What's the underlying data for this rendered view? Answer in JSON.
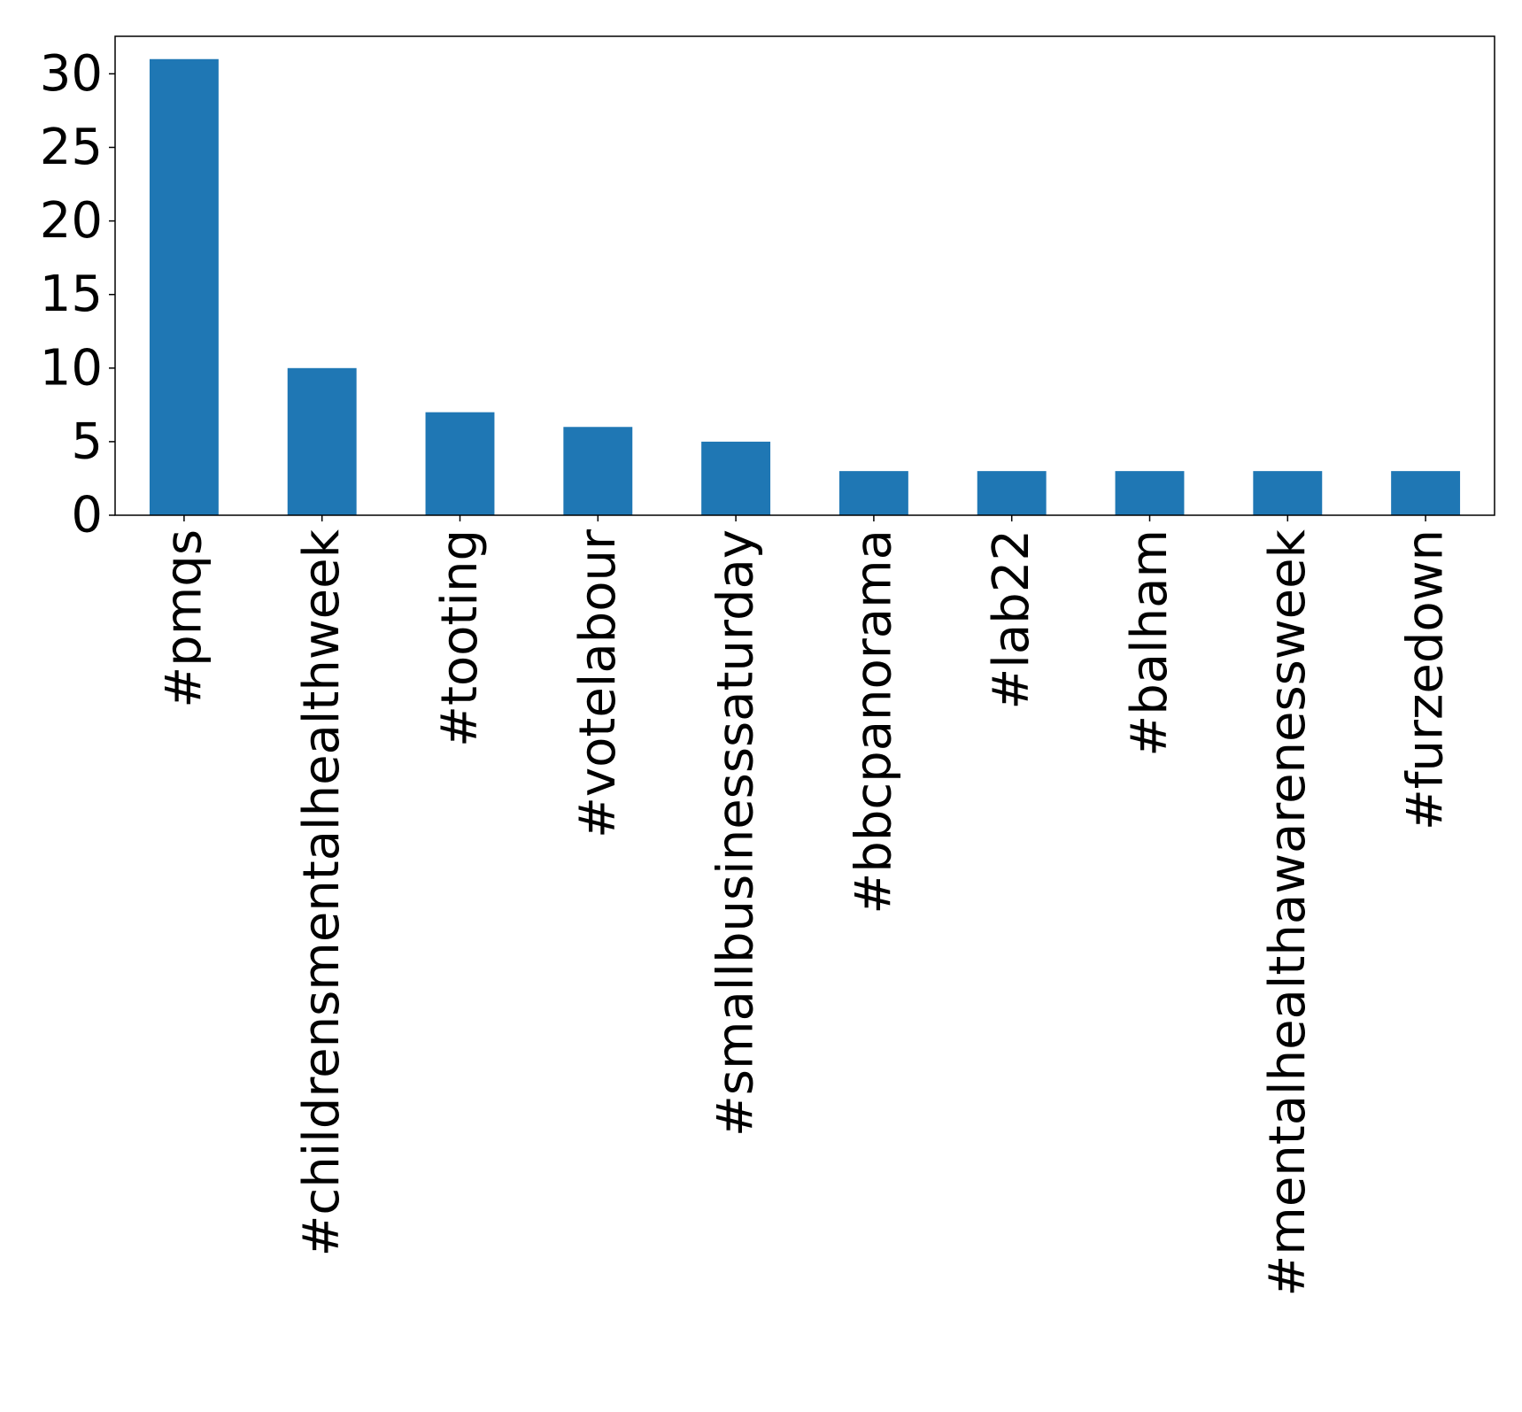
{
  "chart_data": {
    "type": "bar",
    "title": "",
    "xlabel": "",
    "ylabel": "",
    "categories": [
      "#pmqs",
      "#childrensmentalhealthweek",
      "#tooting",
      "#votelabour",
      "#smallbusinesssaturday",
      "#bbcpanorama",
      "#lab22",
      "#balham",
      "#mentalhealthawarenessweek",
      "#furzedown"
    ],
    "values": [
      31,
      10,
      7,
      6,
      5,
      3,
      3,
      3,
      3,
      3
    ],
    "ylim": [
      0,
      32.55
    ],
    "yticks": [
      0,
      5,
      10,
      15,
      20,
      25,
      30
    ],
    "bar_color": "#1f77b4",
    "grid": false,
    "legend": "none",
    "xtick_rotation": "vertical"
  }
}
